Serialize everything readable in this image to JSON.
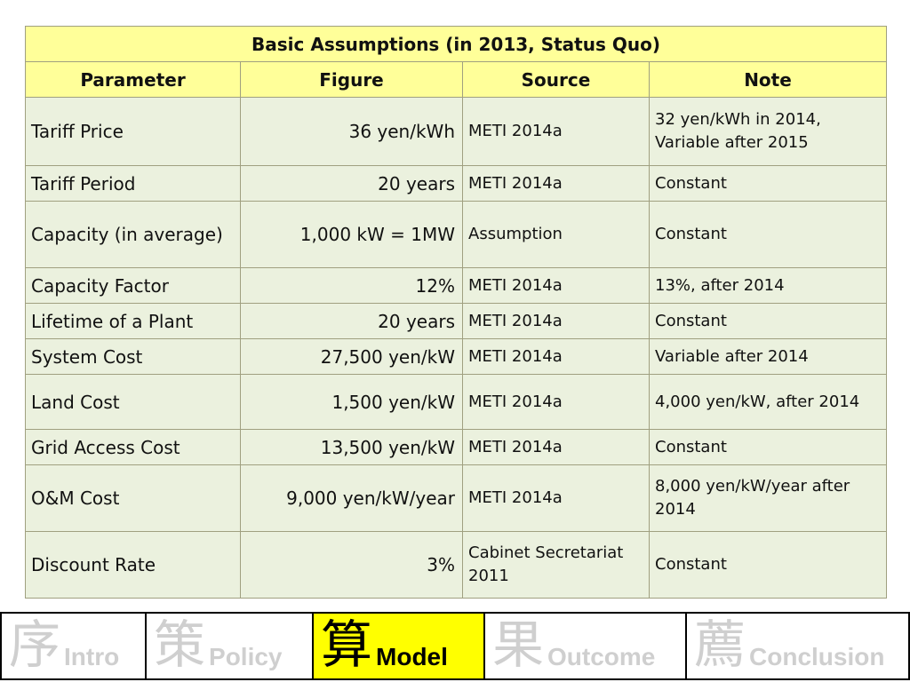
{
  "table": {
    "title": "Basic Assumptions (in 2013, Status Quo)",
    "headers": [
      "Parameter",
      "Figure",
      "Source",
      "Note"
    ],
    "rows": [
      {
        "parameter": "Tariff Price",
        "figure": "36 yen/kWh",
        "source": "METI 2014a",
        "note": "32 yen/kWh in 2014, Variable after 2015"
      },
      {
        "parameter": "Tariff Period",
        "figure": "20 years",
        "source": "METI 2014a",
        "note": "Constant"
      },
      {
        "parameter": "Capacity (in average)",
        "figure": "1,000 kW = 1MW",
        "source": "Assumption",
        "note": "Constant"
      },
      {
        "parameter": "Capacity Factor",
        "figure": "12%",
        "source": "METI 2014a",
        "note": "13%, after 2014"
      },
      {
        "parameter": "Lifetime of a Plant",
        "figure": "20 years",
        "source": "METI 2014a",
        "note": "Constant"
      },
      {
        "parameter": "System Cost",
        "figure": "27,500 yen/kW",
        "source": "METI 2014a",
        "note": "Variable after 2014"
      },
      {
        "parameter": "Land Cost",
        "figure": "1,500 yen/kW",
        "source": "METI 2014a",
        "note": "4,000 yen/kW, after 2014"
      },
      {
        "parameter": "Grid Access Cost",
        "figure": "13,500 yen/kW",
        "source": "METI 2014a",
        "note": "Constant"
      },
      {
        "parameter": "O&M Cost",
        "figure": "9,000 yen/kW/year",
        "source": "METI 2014a",
        "note": "8,000 yen/kW/year after 2014"
      },
      {
        "parameter": "Discount Rate",
        "figure": "3%",
        "source": "Cabinet Secretariat 2011",
        "note": "Constant"
      }
    ]
  },
  "nav": {
    "items": [
      {
        "kanji": "序",
        "label": "Intro",
        "active": false
      },
      {
        "kanji": "策",
        "label": "Policy",
        "active": false
      },
      {
        "kanji": "算",
        "label": "Model",
        "active": true
      },
      {
        "kanji": "果",
        "label": "Outcome",
        "active": false
      },
      {
        "kanji": "薦",
        "label": "Conclusion",
        "active": false
      }
    ],
    "active_color": "#ffff00",
    "inactive_text_color": "#cfcfcf"
  }
}
